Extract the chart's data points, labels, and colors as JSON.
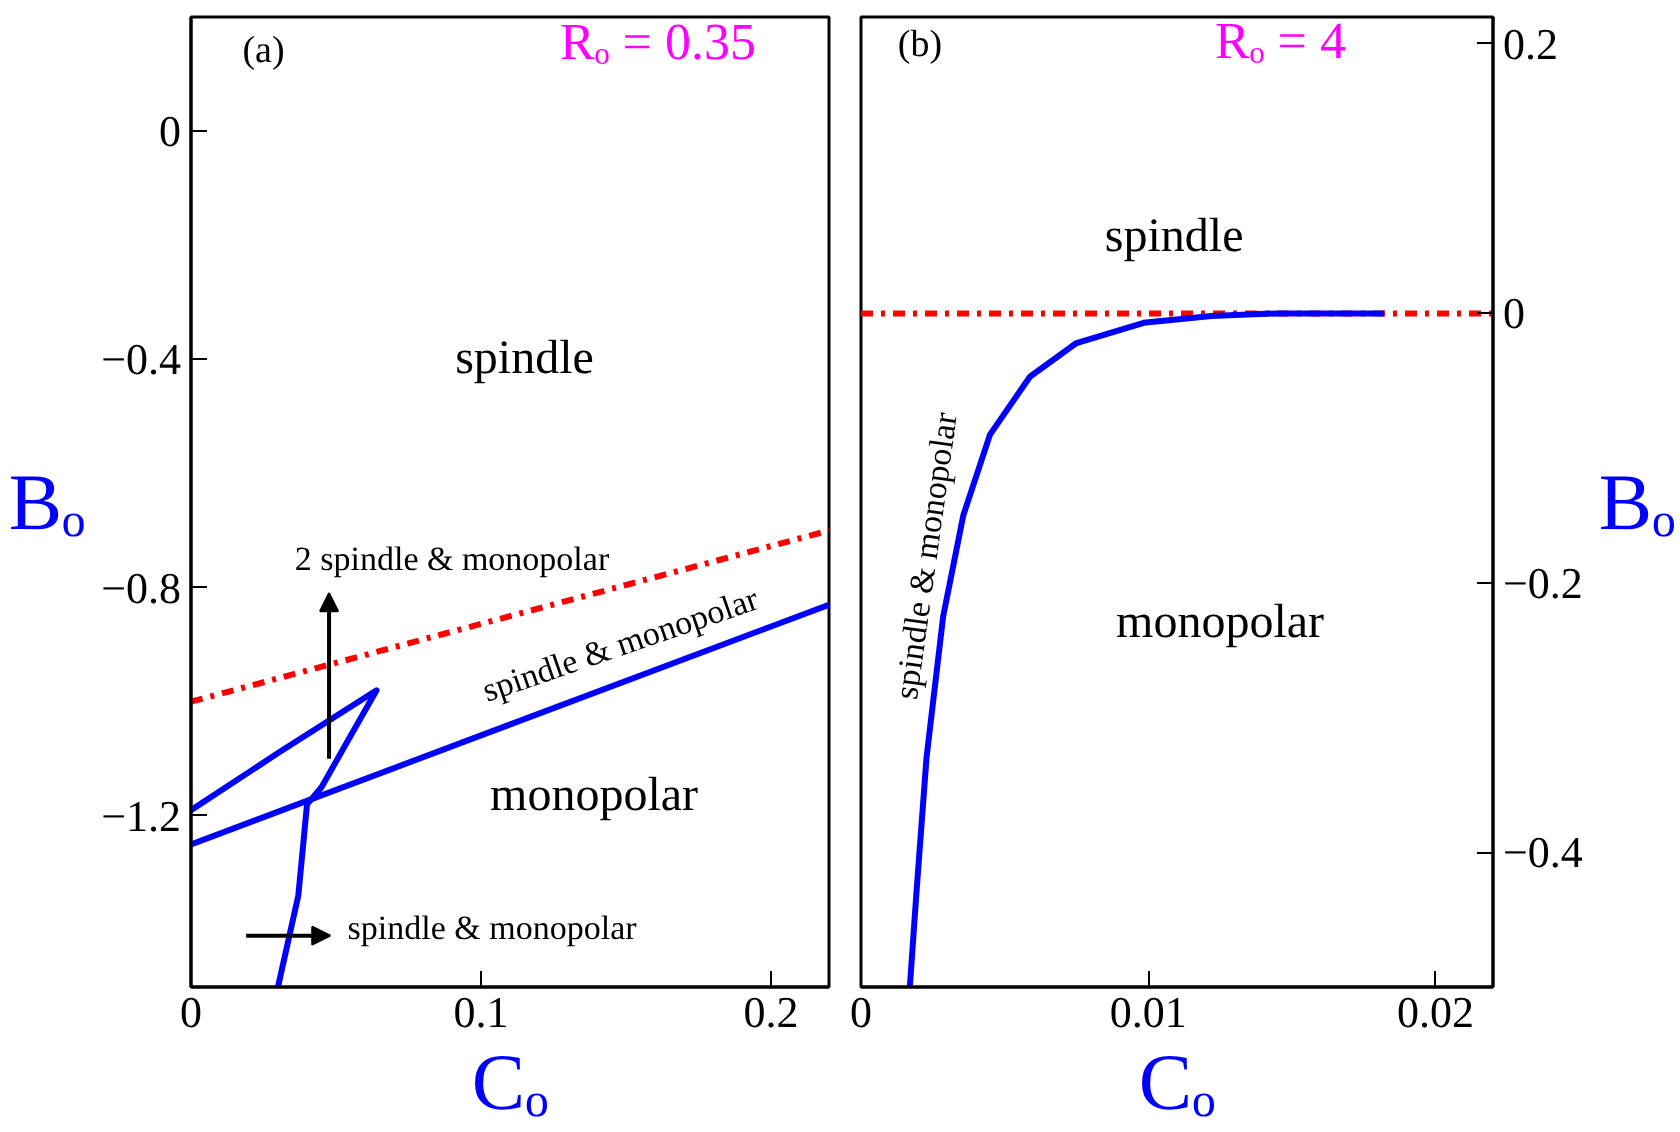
{
  "chart_data": [
    {
      "type": "line",
      "xlabel": "Cₒ",
      "ylabel": "Bₒ",
      "xlim": [
        0,
        0.22
      ],
      "ylim": [
        -1.5,
        0.2
      ],
      "xticks": [
        0,
        0.1,
        0.2
      ],
      "yticks": [
        0,
        -0.4,
        -0.8,
        -1.2
      ],
      "grid": false,
      "series": [
        {
          "color": "#ff0000",
          "line_style": "dashdot",
          "x": [
            0,
            0.22
          ],
          "values": [
            -1.0,
            -0.7
          ]
        },
        {
          "color": "#0000ff",
          "line_style": "solid",
          "x": [
            0,
            0.22
          ],
          "values": [
            -1.25,
            -0.83
          ]
        },
        {
          "color": "#0000ff",
          "line_style": "solid",
          "x": [
            0,
            0.03,
            0.064,
            0.055,
            0.045,
            0.04,
            0.037,
            0.03
          ],
          "values": [
            -1.19,
            -1.09,
            -0.98,
            -1.06,
            -1.15,
            -1.18,
            -1.34,
            -1.5
          ]
        }
      ],
      "annotations": [
        "(a)",
        "Rₒ = 0.35",
        "spindle",
        "2 spindle & monopolar",
        "spindle & monopolar",
        "monopolar",
        "spindle & monopolar"
      ]
    },
    {
      "type": "line",
      "xlabel": "Cₒ",
      "ylabel": "Bₒ",
      "xlim": [
        0,
        0.022
      ],
      "ylim": [
        -0.5,
        0.22
      ],
      "xticks": [
        0,
        0.01,
        0.02
      ],
      "yticks": [
        0.2,
        0,
        -0.2,
        -0.4
      ],
      "grid": false,
      "series": [
        {
          "color": "#ff0000",
          "line_style": "dashdot",
          "x": [
            0,
            0.022
          ],
          "values": [
            0,
            0
          ]
        },
        {
          "color": "#0000ff",
          "line_style": "solid",
          "x": [
            0.0017,
            0.00193,
            0.00228,
            0.00286,
            0.00356,
            0.00449,
            0.00588,
            0.0075,
            0.00984,
            0.0122,
            0.0145,
            0.0182
          ],
          "values": [
            -0.5,
            -0.43,
            -0.33,
            -0.225,
            -0.15,
            -0.09,
            -0.047,
            -0.022,
            -0.007,
            -0.002,
            0,
            0
          ]
        }
      ],
      "annotations": [
        "(b)",
        "Rₒ = 4",
        "spindle",
        "monopolar",
        "spindle & monopolar"
      ]
    }
  ]
}
